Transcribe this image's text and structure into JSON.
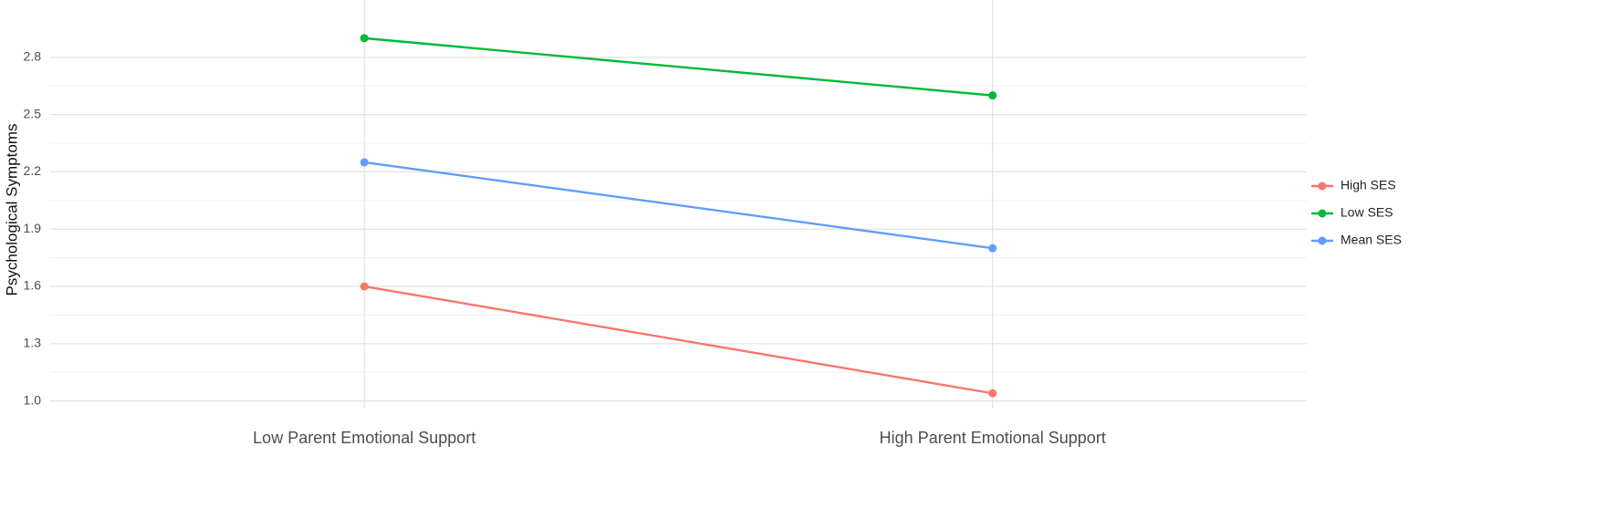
{
  "chart_data": {
    "type": "line",
    "y_label": "Psychological Symptoms",
    "categories": [
      "Low Parent Emotional Support",
      "High Parent Emotional Support"
    ],
    "series": [
      {
        "name": "High SES",
        "color": "#f8766d",
        "values": [
          1.6,
          1.04
        ]
      },
      {
        "name": "Low SES",
        "color": "#00ba38",
        "values": [
          2.9,
          2.6
        ]
      },
      {
        "name": "Mean SES",
        "color": "#619cff",
        "values": [
          2.25,
          1.8
        ]
      }
    ],
    "ylim": [
      0.96,
      3.1
    ],
    "yticks": [
      {
        "value": 1,
        "label": "1.0"
      },
      1.3,
      1.6,
      1.9,
      2.2,
      2.5,
      2.8
    ],
    "grid": true,
    "legend": "right"
  }
}
